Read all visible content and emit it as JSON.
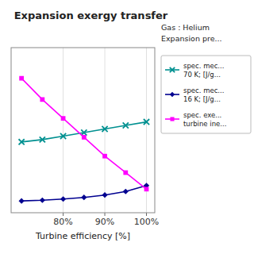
{
  "chart_data": {
    "type": "line",
    "title": "Expansion exergy transfer",
    "xlabel": "Turbine efficiency [%]",
    "annotations": [
      "Gas : Helium",
      "Expansion pre..."
    ],
    "x": [
      0.7,
      0.75,
      0.8,
      0.85,
      0.9,
      0.95,
      1.0
    ],
    "series": [
      {
        "name": "spec. mec...\n70  K; [J/g...",
        "color": "#009090",
        "marker": "x",
        "values": [
          30,
          31,
          32.5,
          34,
          35.5,
          37,
          38.5
        ]
      },
      {
        "name": "spec. mec...\n16  K; [J/g...",
        "color": "#000090",
        "marker": "diamond",
        "values": [
          5,
          5.3,
          5.8,
          6.5,
          7.5,
          9.0,
          11.5
        ]
      },
      {
        "name": "spec. exe...\nturbine ine...",
        "color": "#ff00ff",
        "marker": "square",
        "values": [
          57,
          48,
          40,
          32,
          24,
          17,
          10
        ]
      }
    ],
    "xlim": [
      0.675,
      1.02
    ],
    "ylim": [
      0,
      70
    ],
    "xticks": [
      {
        "value": 0.8,
        "label": "80%"
      },
      {
        "value": 0.9,
        "label": "90%"
      },
      {
        "value": 1.0,
        "label": "100%"
      }
    ],
    "yticks": [],
    "grid": true,
    "legend": "right",
    "tick_labels": "x"
  }
}
